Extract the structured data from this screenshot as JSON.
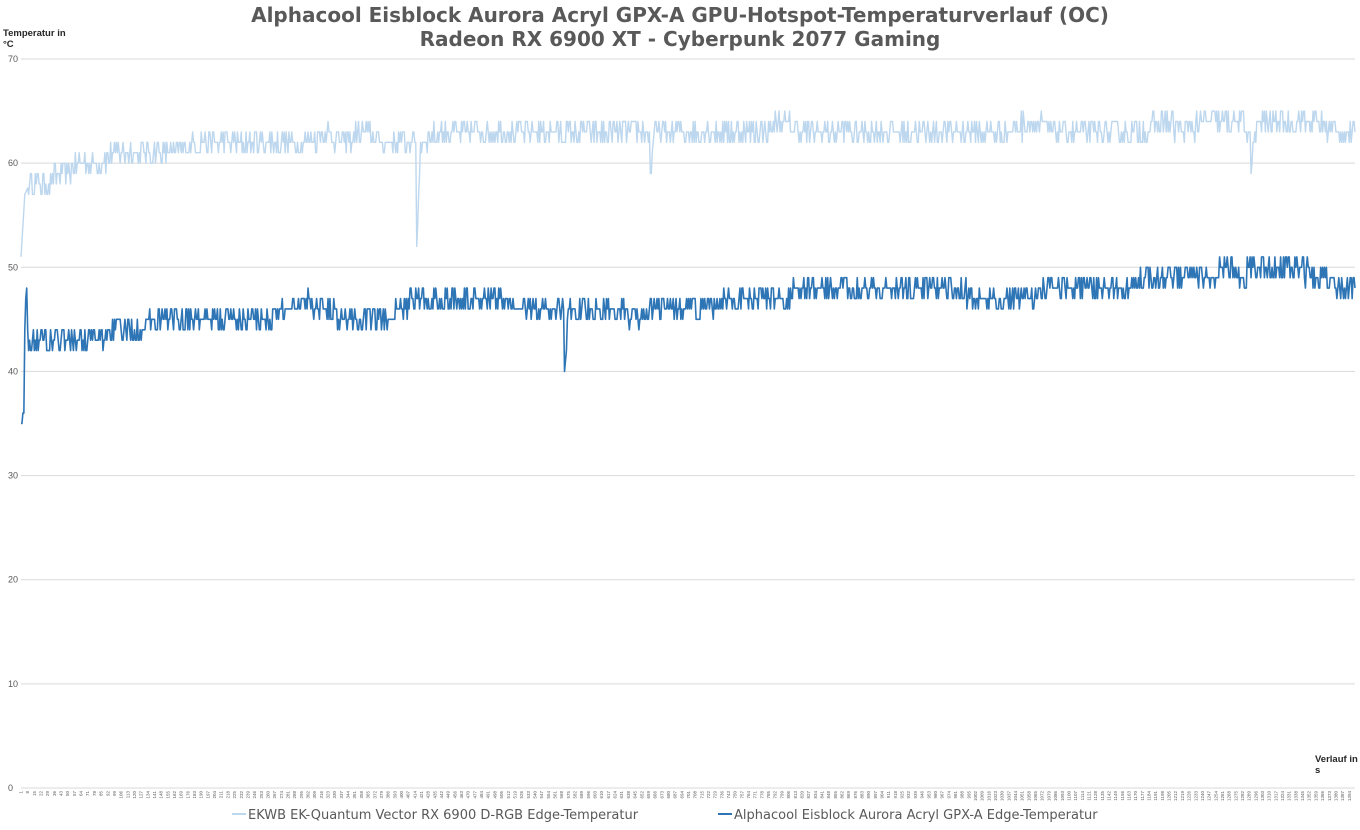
{
  "chart_data": {
    "type": "line",
    "title": "Alphacool Eisblock Aurora Acryl GPX-A GPU-Hotspot-Temperaturverlauf (OC)",
    "subtitle": "Radeon RX 6900 XT - Cyberpunk 2077 Gaming",
    "ylabel": "Temperatur in °C",
    "xlabel": "Verlauf in s",
    "ylim": [
      0,
      70
    ],
    "yticks": [
      0,
      10,
      20,
      30,
      40,
      50,
      60,
      70
    ],
    "xlim": [
      1,
      1400
    ],
    "xticks": [
      1,
      8,
      15,
      22,
      29,
      36,
      43,
      50,
      57,
      64,
      71,
      78,
      85,
      92,
      99,
      106,
      113,
      120,
      127,
      134,
      141,
      148,
      155,
      162,
      169,
      176,
      183,
      190,
      197,
      204,
      211,
      218,
      225,
      232,
      239,
      246,
      253,
      260,
      267,
      274,
      281,
      288,
      295,
      302,
      309,
      316,
      323,
      330,
      337,
      344,
      351,
      358,
      365,
      372,
      379,
      386,
      393,
      400,
      407,
      414,
      421,
      428,
      435,
      442,
      449,
      456,
      463,
      470,
      477,
      484,
      491,
      498,
      505,
      512,
      519,
      526,
      533,
      540,
      547,
      554,
      561,
      568,
      575,
      582,
      589,
      596,
      603,
      610,
      617,
      624,
      631,
      638,
      645,
      652,
      659,
      666,
      673,
      680,
      687,
      694,
      701,
      708,
      715,
      722,
      729,
      736,
      743,
      750,
      757,
      764,
      771,
      778,
      785,
      792,
      799,
      806,
      813,
      820,
      827,
      834,
      841,
      848,
      855,
      862,
      869,
      876,
      883,
      890,
      897,
      904,
      911,
      918,
      925,
      932,
      939,
      946,
      953,
      960,
      967,
      974,
      981,
      988,
      995,
      1002,
      1009,
      1016,
      1023,
      1030,
      1037,
      1044,
      1051,
      1058,
      1065,
      1072,
      1079,
      1086,
      1093,
      1100,
      1107,
      1114,
      1121,
      1128,
      1135,
      1142,
      1149,
      1156,
      1163,
      1170,
      1177,
      1184,
      1191,
      1198,
      1205,
      1212,
      1219,
      1226,
      1233,
      1240,
      1247,
      1254,
      1261,
      1268,
      1275,
      1282,
      1289,
      1296,
      1303,
      1310,
      1317,
      1324,
      1331,
      1338,
      1345,
      1352,
      1359,
      1366,
      1373,
      1380,
      1387,
      1394
    ],
    "grid": true,
    "legend_position": "bottom",
    "series": [
      {
        "name": "EKWB EK-Quantum Vector RX 6900 D-RGB Edge-Temperatur",
        "color": "#bdd7ee",
        "x": [
          1,
          5,
          10,
          20,
          30,
          40,
          50,
          60,
          70,
          80,
          100,
          120,
          140,
          160,
          180,
          200,
          220,
          240,
          260,
          280,
          300,
          320,
          340,
          360,
          380,
          400,
          410,
          415,
          416,
          420,
          440,
          460,
          480,
          500,
          520,
          540,
          560,
          580,
          600,
          620,
          640,
          660,
          661,
          665,
          680,
          700,
          720,
          740,
          760,
          780,
          800,
          820,
          840,
          860,
          880,
          900,
          920,
          940,
          960,
          980,
          1000,
          1020,
          1040,
          1060,
          1080,
          1100,
          1120,
          1140,
          1160,
          1180,
          1200,
          1220,
          1240,
          1260,
          1280,
          1290,
          1291,
          1295,
          1300,
          1320,
          1340,
          1360,
          1380,
          1400
        ],
        "y": [
          51,
          57,
          58,
          58,
          58,
          59,
          59,
          60,
          60,
          60,
          61,
          61,
          61,
          61,
          62,
          62,
          62,
          62,
          62,
          62,
          62,
          63,
          62,
          63,
          62,
          62,
          62,
          62,
          52,
          62,
          63,
          63,
          63,
          63,
          63,
          63,
          63,
          63,
          63,
          63,
          63,
          63,
          59,
          63,
          63,
          63,
          63,
          63,
          63,
          63,
          64,
          63,
          63,
          63,
          63,
          63,
          63,
          63,
          63,
          63,
          63,
          63,
          63,
          64,
          63,
          63,
          63,
          63,
          63,
          63,
          64,
          63,
          64,
          64,
          64,
          63,
          59,
          63,
          64,
          64,
          64,
          64,
          63,
          63
        ],
        "noise": 1.2
      },
      {
        "name": "Alphacool Eisblock Aurora Acryl GPX-A Edge-Temperatur",
        "color": "#2e75b6",
        "x": [
          1,
          2,
          3,
          4,
          5,
          6,
          7,
          8,
          10,
          20,
          40,
          60,
          80,
          100,
          120,
          140,
          160,
          180,
          200,
          220,
          240,
          260,
          280,
          300,
          320,
          340,
          360,
          380,
          400,
          420,
          440,
          460,
          480,
          500,
          520,
          540,
          560,
          570,
          571,
          575,
          580,
          600,
          620,
          640,
          660,
          680,
          700,
          720,
          740,
          760,
          780,
          800,
          820,
          840,
          860,
          880,
          900,
          920,
          940,
          960,
          980,
          1000,
          1020,
          1040,
          1060,
          1080,
          1100,
          1120,
          1140,
          1160,
          1180,
          1200,
          1220,
          1240,
          1260,
          1280,
          1300,
          1320,
          1340,
          1360,
          1380,
          1400
        ],
        "y": [
          35,
          35,
          36,
          36,
          44,
          47,
          48,
          44,
          43,
          43,
          43,
          43,
          43,
          44,
          44,
          45,
          45,
          45,
          45,
          45,
          45,
          45,
          46,
          47,
          46,
          45,
          45,
          45,
          46,
          47,
          47,
          47,
          47,
          47,
          46,
          46,
          46,
          46,
          40,
          46,
          46,
          46,
          46,
          45,
          46,
          46,
          46,
          46,
          47,
          47,
          47,
          47,
          48,
          48,
          48,
          48,
          48,
          48,
          48,
          48,
          48,
          47,
          47,
          47,
          47,
          48,
          48,
          48,
          48,
          48,
          49,
          49,
          49,
          49,
          50,
          49,
          50,
          50,
          50,
          49,
          48,
          48
        ],
        "noise": 1.3
      }
    ]
  }
}
